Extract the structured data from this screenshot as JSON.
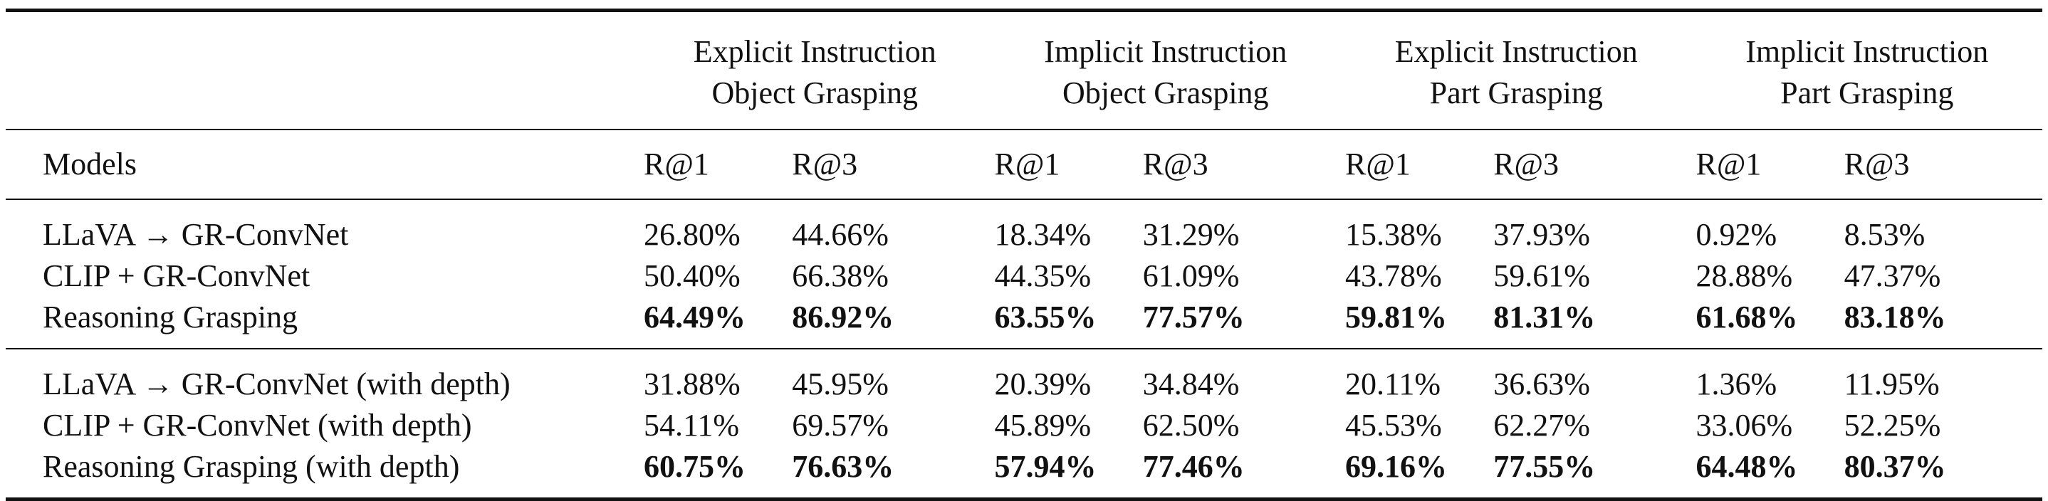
{
  "table": {
    "groups": [
      {
        "line1": "Explicit Instruction",
        "line2": "Object Grasping"
      },
      {
        "line1": "Implicit Instruction",
        "line2": "Object Grasping"
      },
      {
        "line1": "Explicit Instruction",
        "line2": "Part Grasping"
      },
      {
        "line1": "Implicit Instruction",
        "line2": "Part Grasping"
      }
    ],
    "model_header": "Models",
    "metrics": [
      "R@1",
      "R@3",
      "R@1",
      "R@3",
      "R@1",
      "R@3",
      "R@1",
      "R@3"
    ],
    "sections": [
      {
        "rows": [
          {
            "model": "LLaVA → GR-ConvNet",
            "values": [
              "26.80%",
              "44.66%",
              "18.34%",
              "31.29%",
              "15.38%",
              "37.93%",
              "0.92%",
              "8.53%"
            ],
            "bold": false
          },
          {
            "model": "CLIP + GR-ConvNet",
            "values": [
              "50.40%",
              "66.38%",
              "44.35%",
              "61.09%",
              "43.78%",
              "59.61%",
              "28.88%",
              "47.37%"
            ],
            "bold": false
          },
          {
            "model": "Reasoning Grasping",
            "values": [
              "64.49%",
              "86.92%",
              "63.55%",
              "77.57%",
              "59.81%",
              "81.31%",
              "61.68%",
              "83.18%"
            ],
            "bold": true
          }
        ]
      },
      {
        "rows": [
          {
            "model": "LLaVA → GR-ConvNet (with depth)",
            "values": [
              "31.88%",
              "45.95%",
              "20.39%",
              "34.84%",
              "20.11%",
              "36.63%",
              "1.36%",
              "11.95%"
            ],
            "bold": false
          },
          {
            "model": "CLIP + GR-ConvNet (with depth)",
            "values": [
              "54.11%",
              "69.57%",
              "45.89%",
              "62.50%",
              "45.53%",
              "62.27%",
              "33.06%",
              "52.25%"
            ],
            "bold": false
          },
          {
            "model": "Reasoning Grasping (with depth)",
            "values": [
              "60.75%",
              "76.63%",
              "57.94%",
              "77.46%",
              "69.16%",
              "77.55%",
              "64.48%",
              "80.37%"
            ],
            "bold": true
          }
        ]
      }
    ]
  }
}
